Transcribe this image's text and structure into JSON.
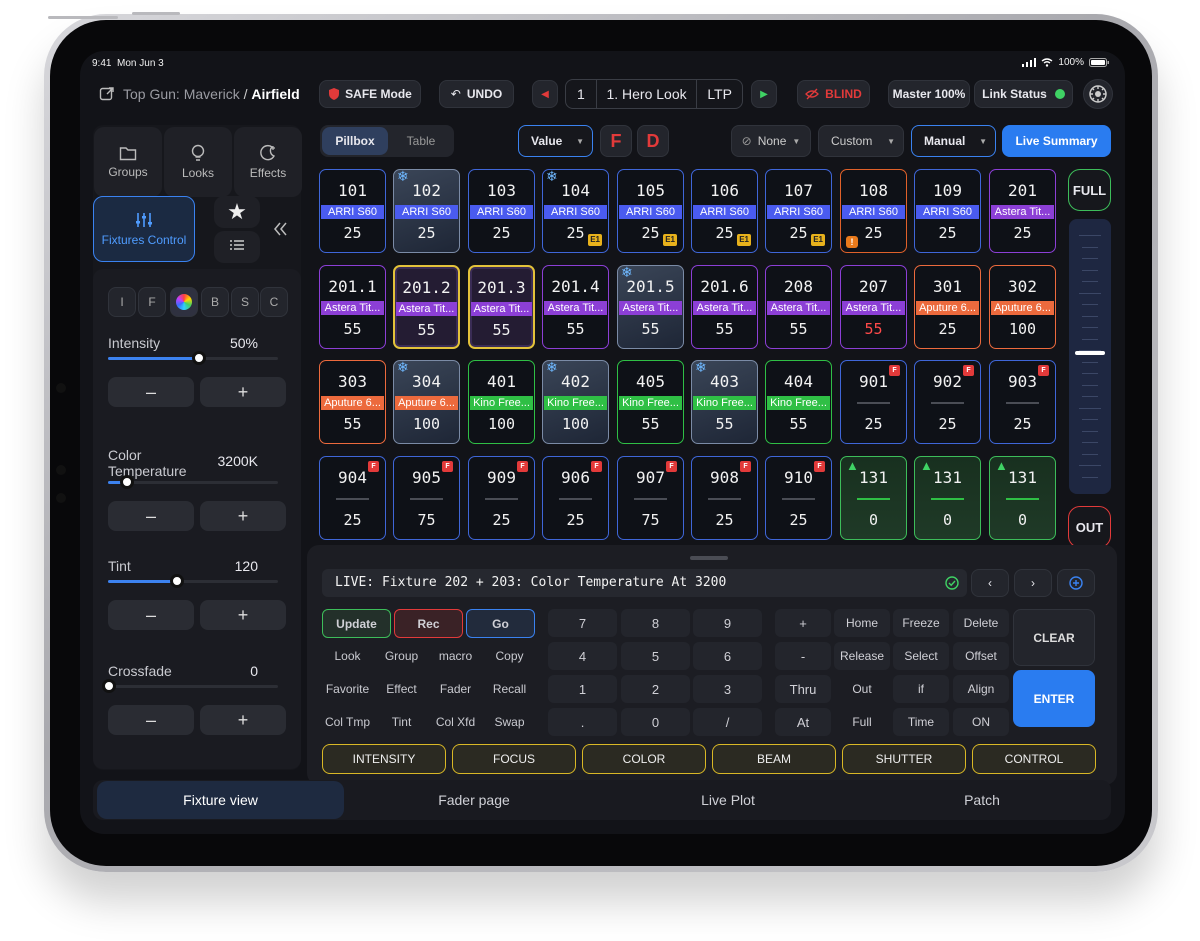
{
  "status_bar": {
    "time": "9:41",
    "date": "Mon Jun 3",
    "battery": "100%"
  },
  "header": {
    "project": "Top Gun: Maverick",
    "separator": "/",
    "location": "Airfield",
    "safe_mode": "SAFE Mode",
    "undo": "UNDO",
    "cue_number": "1",
    "cue_name": "1. Hero Look",
    "cue_mode": "LTP",
    "blind": "BLIND",
    "master": "Master 100%",
    "link_status": "Link Status"
  },
  "sidebar": {
    "tabs": [
      {
        "label": "Groups",
        "icon": "folder-icon"
      },
      {
        "label": "Looks",
        "icon": "lightbulb-icon"
      },
      {
        "label": "Effects",
        "icon": "moon-icon"
      }
    ],
    "fixtures_control": "Fixtures Control",
    "param_tabs": [
      "I",
      "F",
      "",
      "B",
      "S",
      "C"
    ],
    "params": [
      {
        "label": "Intensity",
        "value": "50%",
        "level": 0.5
      },
      {
        "label": "Color Temperature",
        "value": "3200K",
        "level": 0.1
      },
      {
        "label": "Tint",
        "value": "120",
        "level": 0.4
      },
      {
        "label": "Crossfade",
        "value": "0",
        "level": 0
      }
    ],
    "minus": "–",
    "plus": "+"
  },
  "toolbar": {
    "view_toggle": [
      "Pillbox",
      "Table"
    ],
    "value_select": "Value",
    "f_label": "F",
    "d_label": "D",
    "none_select": "None",
    "custom_select": "Custom",
    "manual_select": "Manual",
    "live_summary": "Live Summary"
  },
  "fixtures": [
    {
      "num": "101",
      "label": "ARRI S60",
      "value": "25",
      "color": "#4a5bef",
      "border": "#3f66d8"
    },
    {
      "num": "102",
      "label": "ARRI S60",
      "value": "25",
      "color": "#4a5bef",
      "border": "#7b8ba6",
      "snow": true,
      "selected": true
    },
    {
      "num": "103",
      "label": "ARRI S60",
      "value": "25",
      "color": "#4a5bef",
      "border": "#3f66d8"
    },
    {
      "num": "104",
      "label": "ARRI S60",
      "value": "25",
      "color": "#4a5bef",
      "border": "#3f66d8",
      "snow": true,
      "e1": "E1"
    },
    {
      "num": "105",
      "label": "ARRI S60",
      "value": "25",
      "color": "#4a5bef",
      "border": "#3f66d8",
      "e1": "E1"
    },
    {
      "num": "106",
      "label": "ARRI S60",
      "value": "25",
      "color": "#4a5bef",
      "border": "#3f66d8",
      "e1": "E1"
    },
    {
      "num": "107",
      "label": "ARRI S60",
      "value": "25",
      "color": "#4a5bef",
      "border": "#3f66d8",
      "e1": "E1"
    },
    {
      "num": "108",
      "label": "ARRI S60",
      "value": "25",
      "color": "#4a5bef",
      "border": "#e0612a",
      "warn": "!"
    },
    {
      "num": "109",
      "label": "ARRI S60",
      "value": "25",
      "color": "#4a5bef",
      "border": "#3f66d8"
    },
    {
      "num": "201",
      "label": "Astera Tit...",
      "value": "25",
      "color": "#8c3fd6",
      "border": "#8c3fd6"
    },
    {
      "num": "201.1",
      "label": "Astera Tit...",
      "value": "55",
      "color": "#8c3fd6",
      "border": "#8c3fd6"
    },
    {
      "num": "201.2",
      "label": "Astera Tit...",
      "value": "55",
      "color": "#8c3fd6",
      "border": "#e3c23a",
      "dashed": true
    },
    {
      "num": "201.3",
      "label": "Astera Tit...",
      "value": "55",
      "color": "#8c3fd6",
      "border": "#e3c23a",
      "dashed": true
    },
    {
      "num": "201.4",
      "label": "Astera Tit...",
      "value": "55",
      "color": "#8c3fd6",
      "border": "#8c3fd6"
    },
    {
      "num": "201.5",
      "label": "Astera Tit...",
      "value": "55",
      "color": "#8c3fd6",
      "border": "#7b8ba6",
      "snow": true,
      "selected": true
    },
    {
      "num": "201.6",
      "label": "Astera Tit...",
      "value": "55",
      "color": "#8c3fd6",
      "border": "#8c3fd6"
    },
    {
      "num": "208",
      "label": "Astera Tit...",
      "value": "55",
      "color": "#8c3fd6",
      "border": "#8c3fd6"
    },
    {
      "num": "207",
      "label": "Astera Tit...",
      "value": "55",
      "color": "#8c3fd6",
      "border": "#8c3fd6",
      "red_value": true
    },
    {
      "num": "301",
      "label": "Aputure 6...",
      "value": "25",
      "color": "#ec6a3d",
      "border": "#ec6a3d"
    },
    {
      "num": "302",
      "label": "Aputure 6...",
      "value": "100",
      "color": "#ec6a3d",
      "border": "#ec6a3d"
    },
    {
      "num": "303",
      "label": "Aputure 6...",
      "value": "55",
      "color": "#ec6a3d",
      "border": "#ec6a3d"
    },
    {
      "num": "304",
      "label": "Aputure 6...",
      "value": "100",
      "color": "#ec6a3d",
      "border": "#7b8ba6",
      "snow": true,
      "selected": true
    },
    {
      "num": "401",
      "label": "Kino Free...",
      "value": "100",
      "color": "#2fbf45",
      "border": "#2fbf45"
    },
    {
      "num": "402",
      "label": "Kino Free...",
      "value": "100",
      "color": "#2fbf45",
      "border": "#7b8ba6",
      "snow": true,
      "selected": true
    },
    {
      "num": "405",
      "label": "Kino Free...",
      "value": "55",
      "color": "#2fbf45",
      "border": "#2fbf45"
    },
    {
      "num": "403",
      "label": "Kino Free...",
      "value": "55",
      "color": "#2fbf45",
      "border": "#7b8ba6",
      "snow": true,
      "selected": true
    },
    {
      "num": "404",
      "label": "Kino Free...",
      "value": "55",
      "color": "#2fbf45",
      "border": "#2fbf45"
    },
    {
      "num": "901",
      "label": "",
      "value": "25",
      "color": "",
      "border": "#3f66d8",
      "f": "F"
    },
    {
      "num": "902",
      "label": "",
      "value": "25",
      "color": "",
      "border": "#3f66d8",
      "f": "F"
    },
    {
      "num": "903",
      "label": "",
      "value": "25",
      "color": "",
      "border": "#3f66d8",
      "f": "F"
    },
    {
      "num": "904",
      "label": "",
      "value": "25",
      "color": "",
      "border": "#3f66d8",
      "f": "F"
    },
    {
      "num": "905",
      "label": "",
      "value": "75",
      "color": "",
      "border": "#3f66d8",
      "f": "F"
    },
    {
      "num": "909",
      "label": "",
      "value": "25",
      "color": "",
      "border": "#3f66d8",
      "f": "F"
    },
    {
      "num": "906",
      "label": "",
      "value": "25",
      "color": "",
      "border": "#3f66d8",
      "f": "F"
    },
    {
      "num": "907",
      "label": "",
      "value": "75",
      "color": "",
      "border": "#3f66d8",
      "f": "F"
    },
    {
      "num": "908",
      "label": "",
      "value": "25",
      "color": "",
      "border": "#3f66d8",
      "f": "F"
    },
    {
      "num": "910",
      "label": "",
      "value": "25",
      "color": "",
      "border": "#3f66d8",
      "f": "F"
    },
    {
      "num": "131",
      "label": "",
      "value": "0",
      "color": "#2fbf45",
      "border": "#3dbd5a",
      "tree": true,
      "green_bg": true
    },
    {
      "num": "131",
      "label": "",
      "value": "0",
      "color": "#2fbf45",
      "border": "#3dbd5a",
      "tree": true,
      "green_bg": true
    },
    {
      "num": "131",
      "label": "",
      "value": "0",
      "color": "#2fbf45",
      "border": "#3dbd5a",
      "tree": true,
      "green_bg": true
    }
  ],
  "fader": {
    "full": "FULL",
    "out": "OUT",
    "level": 0.52
  },
  "command": {
    "line": "LIVE: Fixture 202 + 203: Color Temperature At 3200",
    "action_buttons": [
      "Update",
      "Rec",
      "Go"
    ],
    "keypad_left": [
      [
        "Look",
        "Group",
        "macro",
        "Copy"
      ],
      [
        "Favorite",
        "Effect",
        "Fader",
        "Recall"
      ],
      [
        "Col Tmp",
        "Tint",
        "Col Xfd",
        "Swap"
      ]
    ],
    "numpad": [
      [
        "7",
        "8",
        "9"
      ],
      [
        "4",
        "5",
        "6"
      ],
      [
        "1",
        "2",
        "3"
      ],
      [
        ".",
        "0",
        "/"
      ]
    ],
    "ops": [
      "+",
      "-",
      "Thru",
      "At"
    ],
    "right_keys": [
      [
        "Home",
        "Freeze",
        "Delete"
      ],
      [
        "Release",
        "Select",
        "Offset"
      ],
      [
        "Out",
        "if",
        "Align"
      ],
      [
        "Full",
        "Time",
        "ON"
      ]
    ],
    "clear": "CLEAR",
    "enter": "ENTER",
    "categories": [
      "INTENSITY",
      "FOCUS",
      "COLOR",
      "BEAM",
      "SHUTTER",
      "CONTROL"
    ]
  },
  "bottom_tabs": [
    "Fixture view",
    "Fader page",
    "Live Plot",
    "Patch"
  ]
}
